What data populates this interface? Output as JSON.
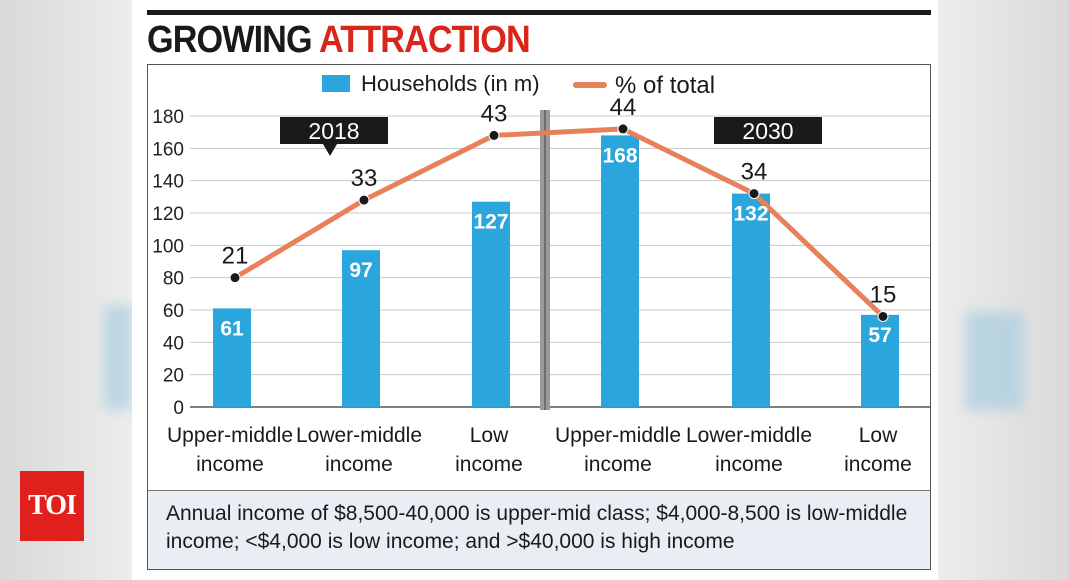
{
  "headline": {
    "part1": "GROWING",
    "part2": "ATTRACTION"
  },
  "legend": {
    "households": "Households (in m)",
    "percent": "% of total"
  },
  "periods": [
    "2018",
    "2030"
  ],
  "note": "Annual income of $8,500-40,000 is upper-mid class; $4,000-8,500 is low-middle income; <$4,000 is low income; and >$40,000 is high income",
  "logo": "TOI",
  "colors": {
    "bar": "#2aa6dc",
    "line": "#e8805c",
    "headline_accent": "#d9261c",
    "divider": "#8a8a8a"
  },
  "chart_data": {
    "type": "bar",
    "title": "GROWING ATTRACTION",
    "categories": [
      [
        "Upper-middle",
        "income"
      ],
      [
        "Lower-middle",
        "income"
      ],
      [
        "Low",
        "income"
      ],
      [
        "Upper-middle",
        "income"
      ],
      [
        "Lower-middle",
        "income"
      ],
      [
        "Low",
        "income"
      ]
    ],
    "groups": [
      "2018",
      "2018",
      "2018",
      "2030",
      "2030",
      "2030"
    ],
    "series": [
      {
        "name": "Households (in m)",
        "type": "bar",
        "values": [
          61,
          97,
          127,
          168,
          132,
          57
        ]
      },
      {
        "name": "% of total",
        "type": "line",
        "values": [
          21,
          33,
          43,
          44,
          34,
          15
        ]
      }
    ],
    "ylim": [
      0,
      180
    ],
    "yticks": [
      0,
      20,
      40,
      60,
      80,
      100,
      120,
      140,
      160,
      180
    ],
    "grid": true,
    "legend_position": "top"
  }
}
